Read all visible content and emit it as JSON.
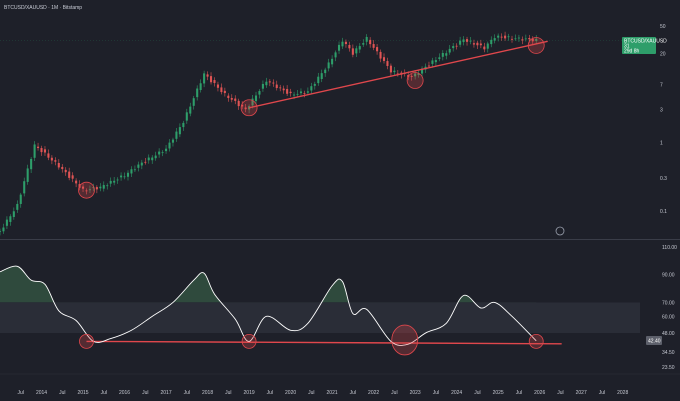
{
  "window": {
    "title": "BTCUSD/XAUUSD · 1M · Bitstamp"
  },
  "colors": {
    "background": "#1e2029",
    "up": "#2e9e6a",
    "down": "#e05454",
    "trendline": "#e0474c",
    "rsi_line": "#ffffff",
    "overbought_fill": "#2f4a3d",
    "oversold_fill": "#4a3035",
    "band_fill": "#2a2d37",
    "badge_price": "#2e9e6a",
    "badge_rsi": "#5d606b"
  },
  "price_badge": {
    "symbol": "BTCUSD/XAUUSD",
    "value": "31",
    "countdown": "29d 8h"
  },
  "rsi_badge": {
    "value": "42.40"
  },
  "price_axis": {
    "ticks": [
      "50",
      "20",
      "7",
      "3",
      "1",
      "0.3",
      "0.1"
    ]
  },
  "rsi_axis": {
    "ticks": [
      "110.00",
      "90.00",
      "70.00",
      "60.00",
      "48.00",
      "34.50",
      "23.50"
    ]
  },
  "time_axis": {
    "ticks": [
      "Jul",
      "2014",
      "Jul",
      "2015",
      "Jul",
      "2016",
      "Jul",
      "2017",
      "Jul",
      "2018",
      "Jul",
      "2019",
      "Jul",
      "2020",
      "Jul",
      "2021",
      "Jul",
      "2022",
      "Jul",
      "2023",
      "Jul",
      "2024",
      "Jul",
      "2025",
      "Jul",
      "2026",
      "Jul",
      "2027",
      "Jul",
      "2028"
    ]
  },
  "chart_data": [
    {
      "type": "candlestick",
      "title": "BTCUSD/XAUUSD · 1M · Bitstamp",
      "y_scale": "log",
      "ylim": [
        0.04,
        75
      ],
      "yticks": [
        50,
        20,
        7,
        3,
        1,
        0.3,
        0.1
      ],
      "last_value": 31,
      "x_start": "2013-01",
      "x_end": "2028-06",
      "series_shape": [
        [
          "2013-01",
          0.05
        ],
        [
          "2013-06",
          0.12
        ],
        [
          "2013-11",
          0.9
        ],
        [
          "2014-01",
          0.75
        ],
        [
          "2014-06",
          0.45
        ],
        [
          "2015-01",
          0.2
        ],
        [
          "2015-06",
          0.22
        ],
        [
          "2016-01",
          0.33
        ],
        [
          "2016-06",
          0.5
        ],
        [
          "2017-01",
          0.8
        ],
        [
          "2017-06",
          2.0
        ],
        [
          "2017-12",
          10.0
        ],
        [
          "2018-06",
          5.0
        ],
        [
          "2018-12",
          3.0
        ],
        [
          "2019-06",
          8.0
        ],
        [
          "2020-01",
          5.0
        ],
        [
          "2020-06",
          5.5
        ],
        [
          "2020-12",
          14.0
        ],
        [
          "2021-04",
          31.0
        ],
        [
          "2021-07",
          20.0
        ],
        [
          "2021-11",
          33.0
        ],
        [
          "2022-06",
          11.0
        ],
        [
          "2022-12",
          9.0
        ],
        [
          "2023-06",
          15.0
        ],
        [
          "2024-03",
          32.0
        ],
        [
          "2024-09",
          24.0
        ],
        [
          "2024-12",
          35.0
        ],
        [
          "2025-06",
          33.0
        ],
        [
          "2025-12",
          31.0
        ]
      ],
      "trendline": {
        "from": [
          "2019-01",
          3.2
        ],
        "to": [
          "2026-01",
          27
        ]
      },
      "highlights": [
        {
          "date": "2015-02",
          "value": 0.2
        },
        {
          "date": "2019-01",
          "value": 3.2
        },
        {
          "date": "2023-01",
          "value": 8.0
        },
        {
          "date": "2025-12",
          "value": 26.0
        }
      ]
    },
    {
      "type": "line",
      "title": "",
      "ylim": [
        20,
        112
      ],
      "yticks": [
        110,
        90,
        70,
        60,
        48,
        34.5,
        23.5
      ],
      "bands": [
        70,
        48
      ],
      "last_value": 42.4,
      "points": [
        [
          "2013-01",
          92
        ],
        [
          "2013-06",
          96
        ],
        [
          "2013-10",
          86
        ],
        [
          "2014-02",
          83
        ],
        [
          "2014-06",
          64
        ],
        [
          "2014-11",
          57
        ],
        [
          "2015-04",
          42
        ],
        [
          "2015-09",
          44
        ],
        [
          "2016-03",
          50
        ],
        [
          "2016-09",
          60
        ],
        [
          "2017-03",
          70
        ],
        [
          "2017-09",
          86
        ],
        [
          "2017-12",
          91
        ],
        [
          "2018-03",
          76
        ],
        [
          "2018-09",
          58
        ],
        [
          "2019-01",
          42
        ],
        [
          "2019-06",
          60
        ],
        [
          "2020-01",
          50
        ],
        [
          "2020-06",
          55
        ],
        [
          "2021-01",
          82
        ],
        [
          "2021-04",
          85
        ],
        [
          "2021-07",
          62
        ],
        [
          "2021-11",
          65
        ],
        [
          "2022-06",
          42
        ],
        [
          "2022-11",
          40
        ],
        [
          "2023-04",
          48
        ],
        [
          "2023-10",
          55
        ],
        [
          "2024-03",
          75
        ],
        [
          "2024-08",
          66
        ],
        [
          "2024-12",
          70
        ],
        [
          "2025-05",
          60
        ],
        [
          "2025-12",
          42.4
        ]
      ],
      "trendline": {
        "from": [
          "2015-02",
          42
        ],
        "to": [
          "2026-01",
          41
        ]
      },
      "highlights": [
        {
          "date": "2015-02",
          "value": 42
        },
        {
          "date": "2019-01",
          "value": 42
        },
        {
          "date": "2022-10",
          "value": 43
        },
        {
          "date": "2025-12",
          "value": 42
        }
      ]
    }
  ]
}
